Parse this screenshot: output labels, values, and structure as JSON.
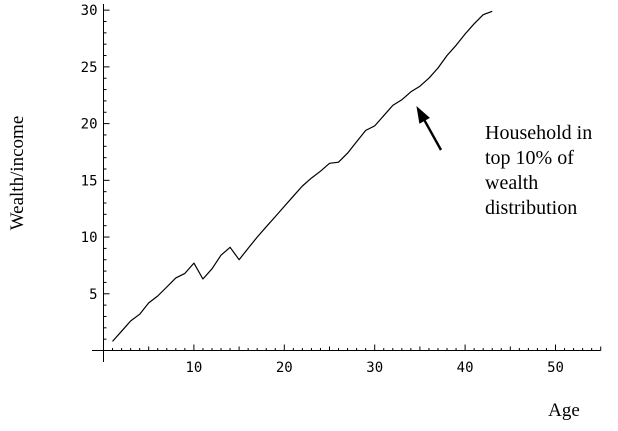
{
  "chart_data": {
    "type": "line",
    "title": "",
    "xlabel": "Age",
    "ylabel": "Wealth/income",
    "xlim": [
      0,
      55
    ],
    "ylim": [
      0,
      30
    ],
    "x_ticks": [
      10,
      20,
      30,
      40,
      50
    ],
    "y_ticks": [
      5,
      10,
      15,
      20,
      25,
      30
    ],
    "grid": false,
    "series": [
      {
        "x": [
          1,
          2,
          3,
          4,
          5,
          6,
          7,
          8,
          9,
          10,
          11,
          12,
          13,
          14,
          15,
          16,
          17,
          18,
          19,
          20,
          21,
          22,
          23,
          24,
          25,
          26,
          27,
          28,
          29,
          30,
          31,
          32,
          33,
          34,
          35,
          36,
          37,
          38,
          39,
          40,
          41,
          42,
          43
        ],
        "y": [
          0.8,
          1.7,
          2.6,
          3.2,
          4.2,
          4.8,
          5.6,
          6.4,
          6.8,
          7.7,
          6.3,
          7.2,
          8.4,
          9.1,
          8.0,
          9.0,
          10.0,
          10.9,
          11.8,
          12.7,
          13.6,
          14.5,
          15.2,
          15.8,
          16.5,
          16.6,
          17.4,
          18.4,
          19.4,
          19.8,
          20.7,
          21.6,
          22.1,
          22.8,
          23.3,
          24.0,
          24.9,
          26.0,
          26.9,
          27.9,
          28.8,
          29.6,
          29.9
        ]
      }
    ],
    "annotations": [
      {
        "text": "Household in top 10% of wealth distribution",
        "lines": [
          "Household in",
          "top 10% of",
          "wealth",
          "distribution"
        ],
        "arrow_x": 34.5,
        "arrow_y": 22.7
      }
    ]
  }
}
